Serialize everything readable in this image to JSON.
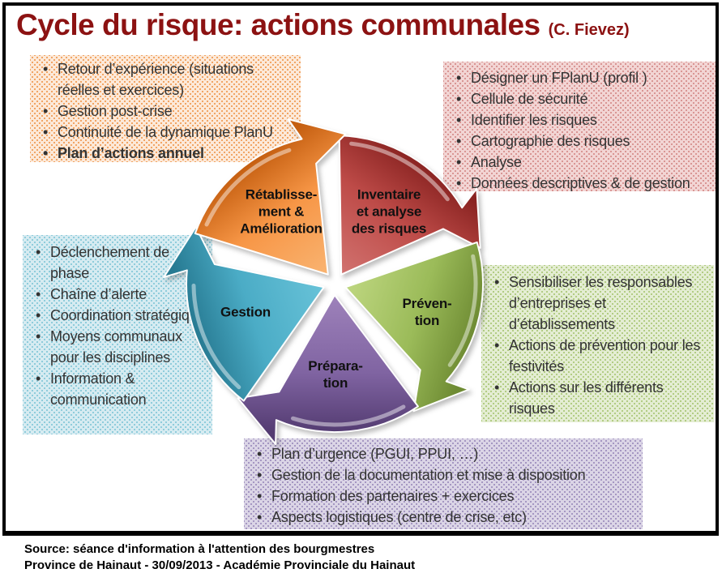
{
  "title": {
    "main": "Cycle du risque: actions communales",
    "suffix": "(C. Fievez)",
    "color": "#8C1212"
  },
  "cycle": {
    "flow": "clockwise",
    "segments": [
      {
        "name": "inventaire",
        "label": "Inventaire\net analyse\ndes risques",
        "color": "#BE4B48",
        "color_light": "#D0706D",
        "color_dark": "#8A2422"
      },
      {
        "name": "prevention",
        "label": "Préven-\ntion",
        "color": "#9BBB59",
        "color_light": "#BCD57E",
        "color_dark": "#6E8B33"
      },
      {
        "name": "preparation",
        "label": "Prépara-\ntion",
        "color": "#8064A2",
        "color_light": "#9C80B9",
        "color_dark": "#543C72"
      },
      {
        "name": "gestion",
        "label": "Gestion",
        "color": "#4BACC6",
        "color_light": "#66C1D7",
        "color_dark": "#277A92"
      },
      {
        "name": "retablissement",
        "label": "Rétablisse-\nment &\nAmélioration",
        "color": "#F79646",
        "color_light": "#F9B26F",
        "color_dark": "#C55F11"
      }
    ]
  },
  "boxes": {
    "retablissement": {
      "accent": "#F79646",
      "bg": "#FCE9D9",
      "dot": "#F1A565",
      "items": [
        {
          "text": "Retour d’expérience (situations réelles et exercices)"
        },
        {
          "text": "Gestion post-crise"
        },
        {
          "text": "Continuité de la dynamique PlanU"
        },
        {
          "text": "Plan d’actions annuel",
          "bold": true
        }
      ]
    },
    "inventaire": {
      "accent": "#C0504D",
      "bg": "#F2D5D4",
      "dot": "#D99694",
      "items": [
        {
          "text": "Désigner un FPlanU (profil )"
        },
        {
          "text": "Cellule de sécurité"
        },
        {
          "text": "Identifier les risques"
        },
        {
          "text": "Cartographie des risques"
        },
        {
          "text": "Analyse"
        },
        {
          "text": "Données descriptives & de gestion"
        }
      ]
    },
    "gestion": {
      "accent": "#4BACC6",
      "bg": "#D6EBF1",
      "dot": "#8FCCDB",
      "items": [
        {
          "text": "Déclenchement de phase"
        },
        {
          "text": "Chaîne d’alerte"
        },
        {
          "text": "Coordination stratégique"
        },
        {
          "text": "Moyens communaux pour les disciplines"
        },
        {
          "text": "Information & communication"
        }
      ]
    },
    "prevention": {
      "accent": "#9BBB59",
      "bg": "#E4EDD3",
      "dot": "#B2CC84",
      "items": [
        {
          "text": "Sensibiliser les responsables d’entreprises et d’établissements"
        },
        {
          "text": "Actions de prévention pour les festivités"
        },
        {
          "text": "Actions sur les différents risques"
        }
      ]
    },
    "preparation": {
      "accent": "#8064A2",
      "bg": "#DBD5E6",
      "dot": "#A597C2",
      "items": [
        {
          "text": "Plan d’urgence (PGUI, PPUI, …)"
        },
        {
          "text": "Gestion de la documentation et mise à disposition"
        },
        {
          "text": "Formation des partenaires + exercices"
        },
        {
          "text": "Aspects logistiques (centre de crise, etc)"
        }
      ]
    }
  },
  "footer": {
    "line1": "Source: séance d'information à l'attention des bourgmestres",
    "line2": "Province de Hainaut - 30/09/2013 - Académie Provinciale du Hainaut"
  }
}
